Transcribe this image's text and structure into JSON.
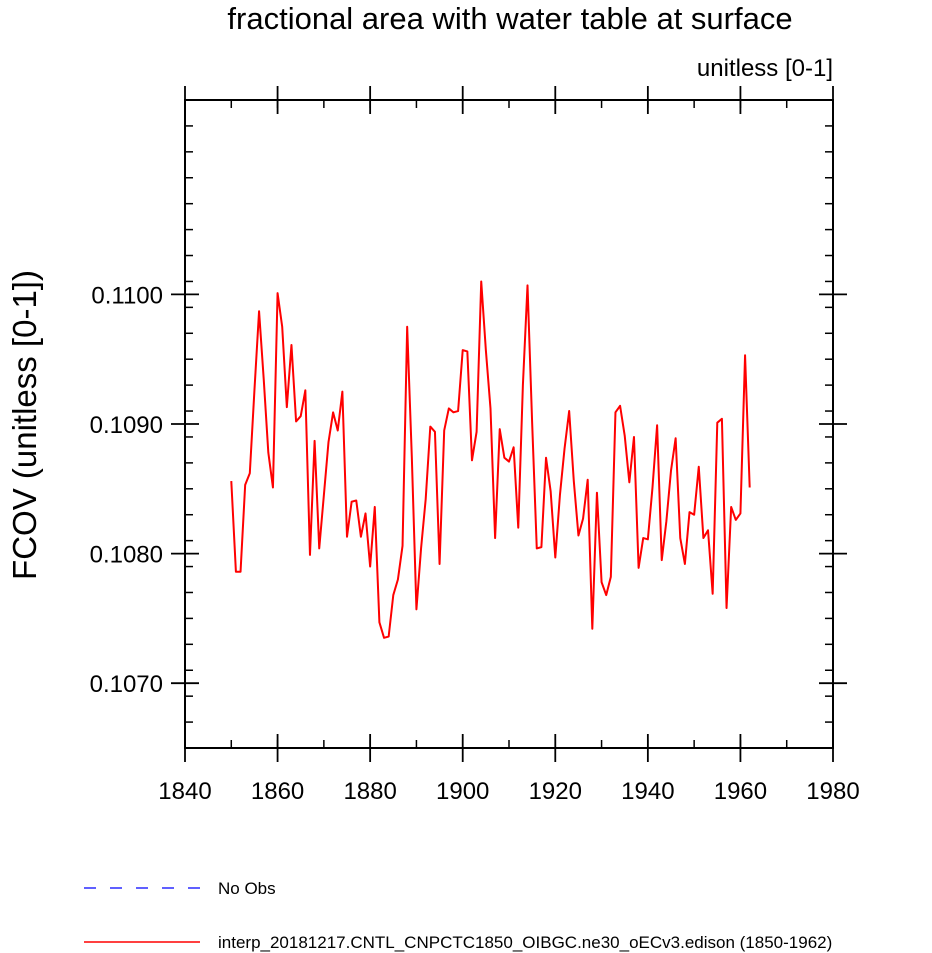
{
  "chart_data": {
    "type": "line",
    "title": "fractional area with water table at surface",
    "units_label": "unitless [0-1]",
    "ylabel": "FCOV  (unitless [0-1])",
    "xlabel": "",
    "xlim": [
      1840,
      1980
    ],
    "ylim": [
      0.1065,
      0.1115
    ],
    "x_ticks": [
      1840,
      1860,
      1880,
      1900,
      1920,
      1940,
      1960,
      1980
    ],
    "x_minor_step": 10,
    "y_ticks": [
      0.107,
      0.108,
      0.109,
      0.11
    ],
    "y_tick_labels": [
      "0.1070",
      "0.1080",
      "0.1090",
      "0.1100"
    ],
    "y_minor_step": 0.0002,
    "grid": false,
    "legend": [
      {
        "label": "No Obs",
        "color": "#0000ff",
        "style": "dashed"
      },
      {
        "label": "interp_20181217.CNTL_CNPCTC1850_OIBGC.ne30_oECv3.edison (1850-1962)",
        "color": "#ff0000",
        "style": "solid"
      }
    ],
    "series": [
      {
        "name": "interp_20181217.CNTL_CNPCTC1850_OIBGC.ne30_oECv3.edison (1850-1962)",
        "color": "#ff0000",
        "x_start": 1850,
        "x_step": 1,
        "values": [
          0.10856,
          0.10786,
          0.10786,
          0.10853,
          0.10862,
          0.10926,
          0.10987,
          0.10935,
          0.10878,
          0.10851,
          0.11001,
          0.10975,
          0.10913,
          0.10961,
          0.10902,
          0.10906,
          0.10926,
          0.10799,
          0.10887,
          0.10804,
          0.10845,
          0.10886,
          0.10909,
          0.10895,
          0.10925,
          0.10813,
          0.1084,
          0.10841,
          0.10813,
          0.10831,
          0.1079,
          0.10836,
          0.10747,
          0.10735,
          0.10736,
          0.10768,
          0.1078,
          0.10806,
          0.10975,
          0.10875,
          0.10757,
          0.10804,
          0.10842,
          0.10898,
          0.10894,
          0.10792,
          0.10895,
          0.10912,
          0.10909,
          0.1091,
          0.10957,
          0.10956,
          0.10872,
          0.10894,
          0.1101,
          0.10957,
          0.10912,
          0.10812,
          0.10896,
          0.10874,
          0.10871,
          0.10882,
          0.1082,
          0.1093,
          0.11007,
          0.10901,
          0.10804,
          0.10805,
          0.10874,
          0.10848,
          0.10797,
          0.10845,
          0.10881,
          0.1091,
          0.10856,
          0.10814,
          0.10827,
          0.10857,
          0.10742,
          0.10847,
          0.10778,
          0.10768,
          0.10782,
          0.10909,
          0.10914,
          0.10891,
          0.10855,
          0.1089,
          0.10789,
          0.10812,
          0.10811,
          0.10851,
          0.10899,
          0.10795,
          0.10825,
          0.10864,
          0.10889,
          0.10812,
          0.10792,
          0.10832,
          0.1083,
          0.10867,
          0.10812,
          0.10818,
          0.10769,
          0.10901,
          0.10904,
          0.10758,
          0.10836,
          0.10826,
          0.10831,
          0.10953,
          0.10851
        ]
      }
    ]
  }
}
